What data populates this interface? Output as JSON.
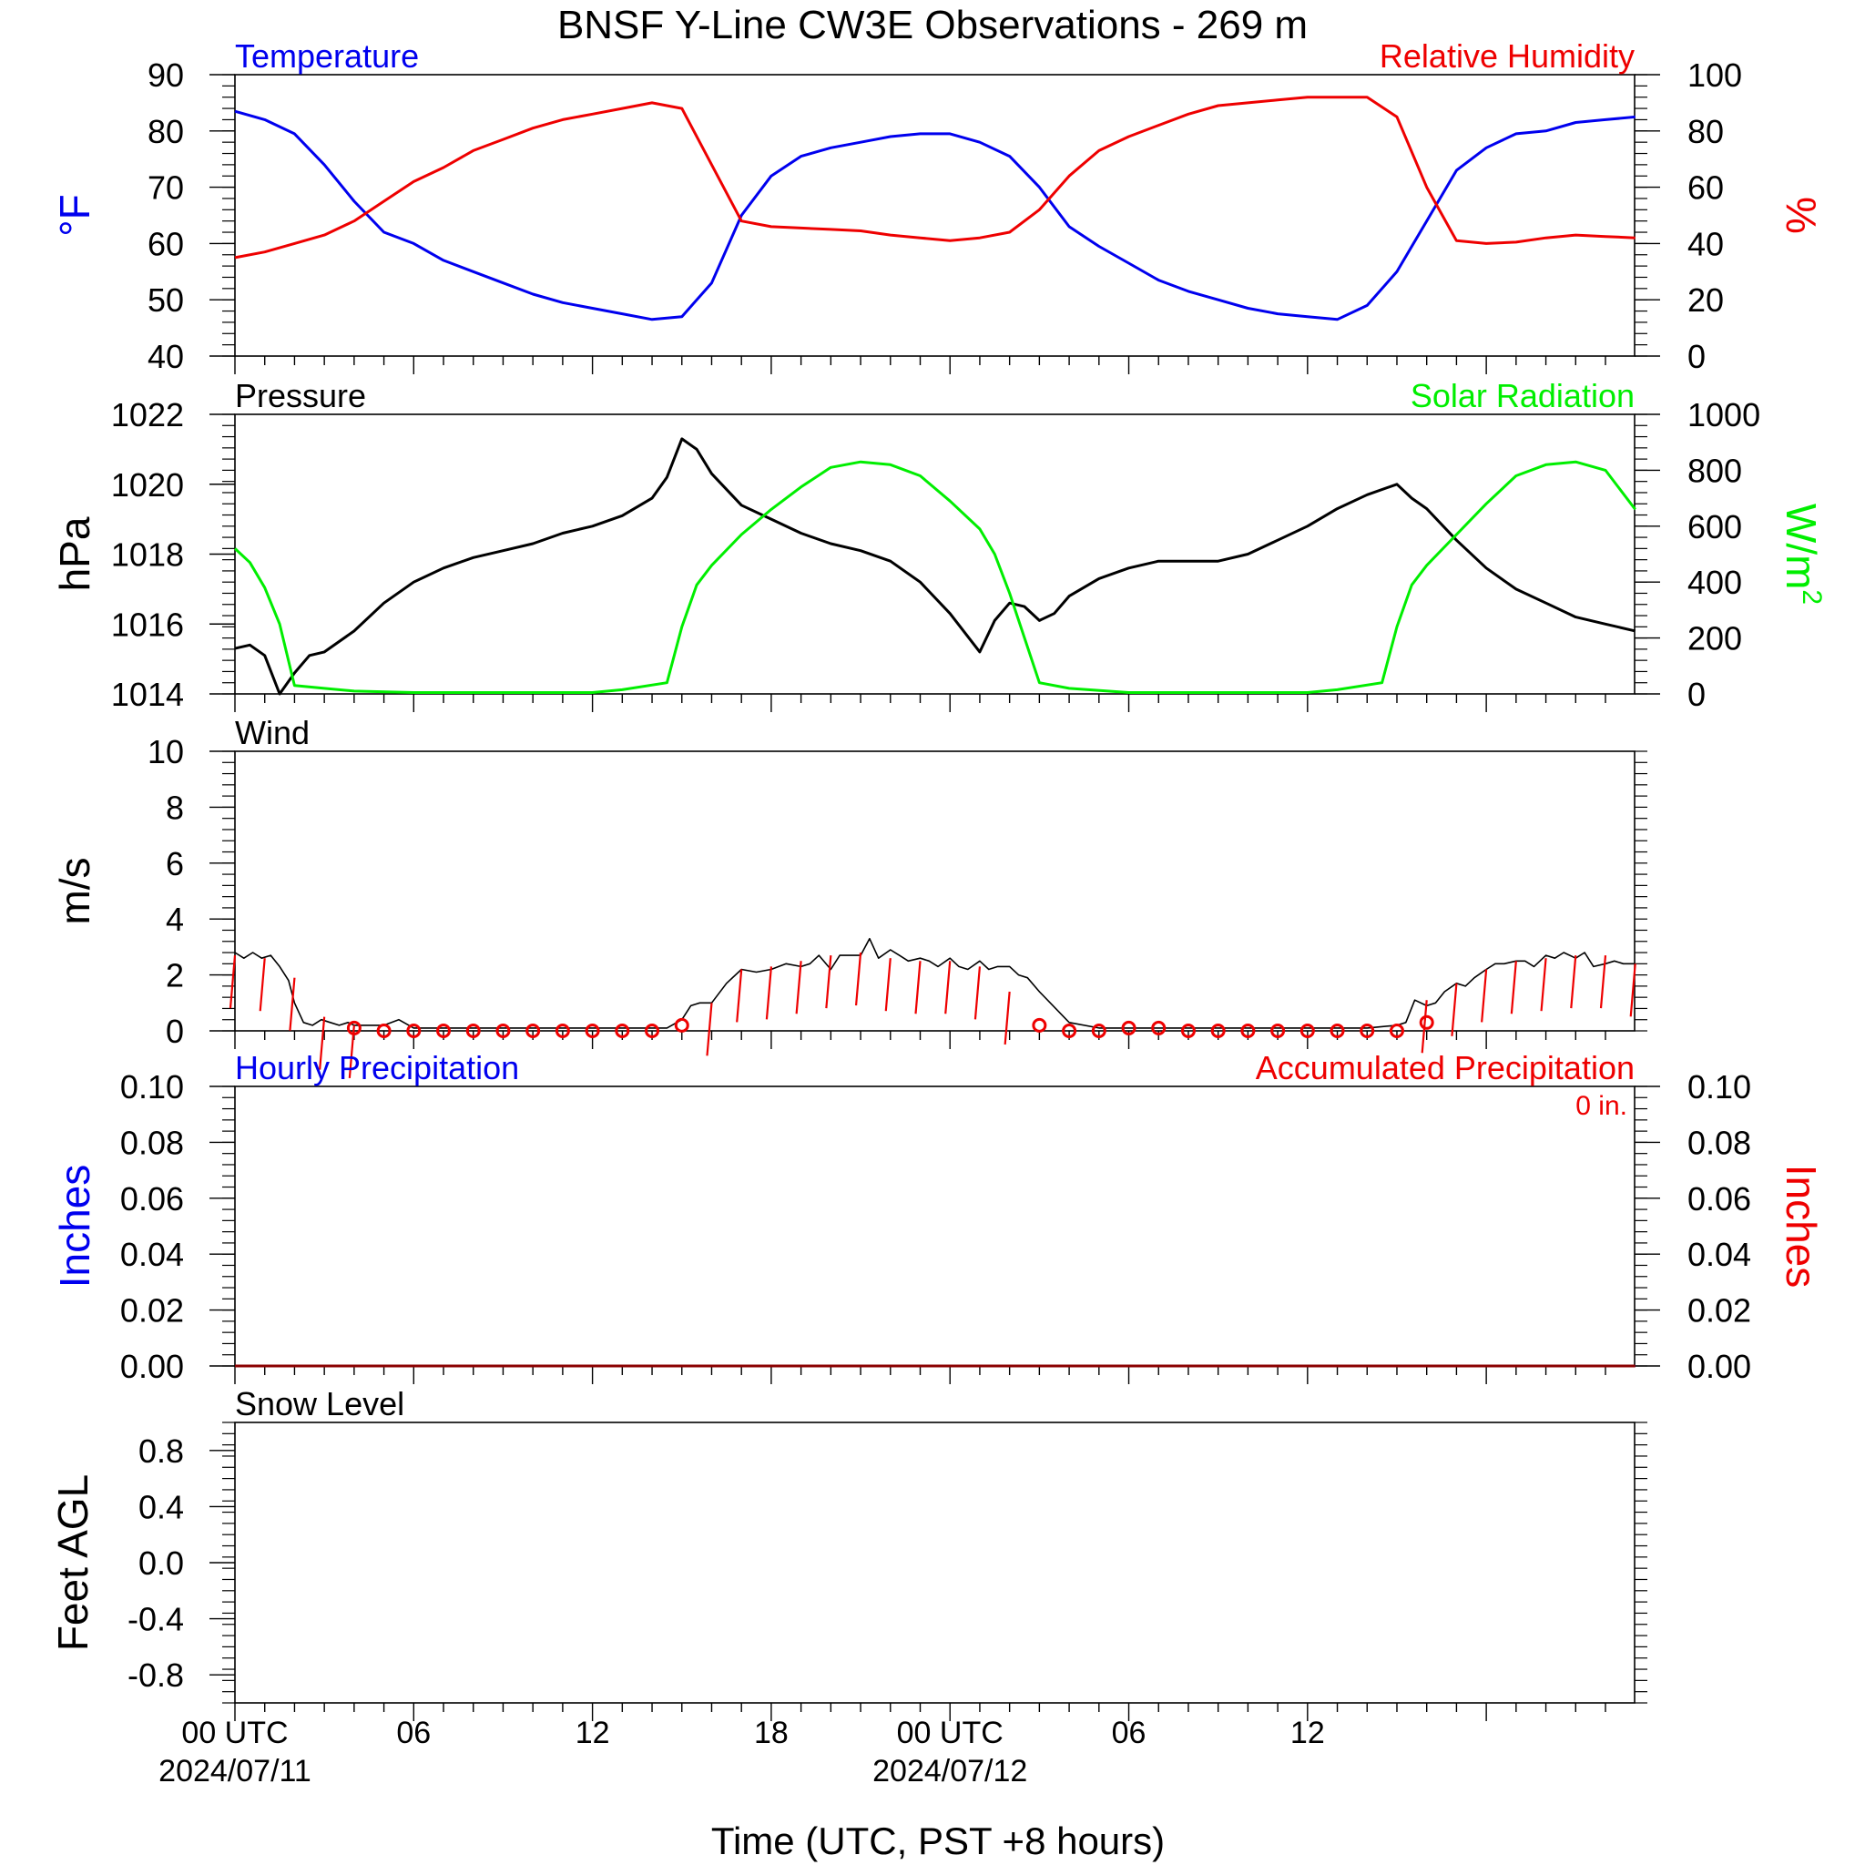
{
  "title": "BNSF Y-Line CW3E Observations - 269 m",
  "xlabel": "Time (UTC, PST +8 hours)",
  "x_tick_labels": [
    {
      "hour": 0,
      "line1": "00 UTC",
      "line2": "2024/07/11"
    },
    {
      "hour": 6,
      "line1": "06",
      "line2": ""
    },
    {
      "hour": 12,
      "line1": "12",
      "line2": ""
    },
    {
      "hour": 18,
      "line1": "18",
      "line2": ""
    },
    {
      "hour": 24,
      "line1": "00 UTC",
      "line2": "2024/07/12"
    },
    {
      "hour": 30,
      "line1": "06",
      "line2": ""
    },
    {
      "hour": 36,
      "line1": "12",
      "line2": ""
    }
  ],
  "colors": {
    "temperature": "#0000ee",
    "humidity": "#ee0000",
    "pressure": "#000000",
    "solar": "#00ee00",
    "wind": "#000000",
    "barb": "#ee0000",
    "precip_acc": "#8b0000"
  },
  "chart_data": [
    {
      "type": "line",
      "panel": "temperature-humidity",
      "series": [
        {
          "name": "Temperature",
          "axis": "left",
          "x": [
            0,
            1,
            2,
            3,
            4,
            5,
            6,
            7,
            8,
            9,
            10,
            11,
            12,
            13,
            14,
            15,
            16,
            17,
            18,
            19,
            20,
            21,
            22,
            23,
            24,
            25,
            26,
            27,
            28,
            29,
            30,
            31,
            32,
            33,
            34,
            35,
            36,
            37,
            38,
            39,
            40,
            41,
            42,
            43,
            44,
            45,
            46,
            47
          ],
          "y": [
            83.5,
            82,
            79.5,
            74,
            67.5,
            62,
            60,
            57,
            55,
            53,
            51,
            49.5,
            48.5,
            47.5,
            46.5,
            47,
            53,
            65,
            72,
            75.5,
            77,
            78,
            79,
            79.5,
            79.5,
            78,
            75.5,
            70,
            63,
            59.5,
            56.5,
            53.5,
            51.5,
            50,
            48.5,
            47.5,
            47,
            46.5,
            49,
            55,
            64,
            73,
            77,
            79.5,
            80,
            81.5,
            82,
            82.5
          ]
        },
        {
          "name": "Relative Humidity",
          "axis": "right",
          "x": [
            0,
            1,
            2,
            3,
            4,
            5,
            6,
            7,
            8,
            9,
            10,
            11,
            12,
            13,
            14,
            15,
            16,
            17,
            18,
            19,
            20,
            21,
            22,
            23,
            24,
            25,
            26,
            27,
            28,
            29,
            30,
            31,
            32,
            33,
            34,
            35,
            36,
            37,
            38,
            39,
            40,
            41,
            42,
            43,
            44,
            45,
            46,
            47
          ],
          "y": [
            35,
            37,
            40,
            43,
            48,
            55,
            62,
            67,
            73,
            77,
            81,
            84,
            86,
            88,
            90,
            88,
            68,
            48,
            46,
            45.5,
            45,
            44.5,
            43,
            42,
            41,
            42,
            44,
            52,
            64,
            73,
            78,
            82,
            86,
            89,
            90,
            91,
            92,
            92,
            92,
            85,
            60,
            41,
            40,
            40.5,
            42,
            43,
            42.5,
            42
          ]
        }
      ],
      "left_axis": {
        "label": "°F",
        "ylim": [
          40,
          90
        ],
        "ticks": [
          "40",
          "50",
          "60",
          "70",
          "80",
          "90"
        ]
      },
      "right_axis": {
        "label": "%",
        "ylim": [
          0,
          100
        ],
        "ticks": [
          "0",
          "20",
          "40",
          "60",
          "80",
          "100"
        ]
      }
    },
    {
      "type": "line",
      "panel": "pressure-solar",
      "series": [
        {
          "name": "Pressure",
          "axis": "left",
          "x": [
            0,
            0.5,
            1,
            1.5,
            2,
            2.5,
            3,
            4,
            5,
            6,
            7,
            8,
            9,
            10,
            11,
            12,
            13,
            14,
            14.5,
            15,
            15.5,
            16,
            17,
            18,
            19,
            20,
            21,
            22,
            23,
            24,
            25,
            25.5,
            26,
            26.5,
            27,
            27.5,
            28,
            29,
            30,
            31,
            32,
            33,
            34,
            35,
            36,
            37,
            38,
            39,
            39.5,
            40,
            41,
            42,
            43,
            44,
            45,
            46,
            47
          ],
          "y": [
            1015.3,
            1015.4,
            1015.1,
            1014,
            1014.6,
            1015.1,
            1015.2,
            1015.8,
            1016.6,
            1017.2,
            1017.6,
            1017.9,
            1018.1,
            1018.3,
            1018.6,
            1018.8,
            1019.1,
            1019.6,
            1020.2,
            1021.3,
            1021,
            1020.3,
            1019.4,
            1019,
            1018.6,
            1018.3,
            1018.1,
            1017.8,
            1017.2,
            1016.3,
            1015.2,
            1016.1,
            1016.6,
            1016.5,
            1016.1,
            1016.3,
            1016.8,
            1017.3,
            1017.6,
            1017.8,
            1017.8,
            1017.8,
            1018,
            1018.4,
            1018.8,
            1019.3,
            1019.7,
            1020,
            1019.6,
            1019.3,
            1018.4,
            1017.6,
            1017,
            1016.6,
            1016.2,
            1016,
            1015.8
          ]
        },
        {
          "name": "Solar Radiation",
          "axis": "right",
          "x": [
            0,
            0.5,
            1,
            1.5,
            2,
            3,
            4,
            6,
            8,
            10,
            12,
            13,
            14.5,
            15,
            15.5,
            16,
            17,
            18,
            19,
            20,
            21,
            22,
            23,
            24,
            25,
            25.5,
            26,
            27,
            28,
            30,
            32,
            34,
            36,
            37,
            38.5,
            39,
            39.5,
            40,
            41,
            42,
            43,
            44,
            45,
            46,
            47
          ],
          "y": [
            520,
            470,
            380,
            250,
            30,
            20,
            10,
            5,
            5,
            5,
            5,
            15,
            40,
            240,
            390,
            460,
            570,
            660,
            740,
            810,
            830,
            820,
            780,
            690,
            590,
            500,
            360,
            40,
            20,
            5,
            5,
            5,
            5,
            15,
            40,
            240,
            390,
            460,
            570,
            680,
            780,
            820,
            830,
            800,
            660
          ]
        }
      ],
      "left_axis": {
        "label": "hPa",
        "ylim": [
          1014,
          1022
        ],
        "ticks": [
          "1014",
          "1016",
          "1018",
          "1020",
          "1022"
        ]
      },
      "right_axis": {
        "label": "W/m",
        "label_sup": "2",
        "ylim": [
          0,
          1000
        ],
        "ticks": [
          "0",
          "200",
          "400",
          "600",
          "800",
          "1000"
        ]
      }
    },
    {
      "type": "line",
      "panel": "wind",
      "series": [
        {
          "name": "Wind",
          "axis": "left",
          "x": [
            0,
            0.3,
            0.6,
            0.9,
            1.2,
            1.5,
            1.8,
            2,
            2.3,
            2.6,
            2.9,
            3.2,
            3.5,
            3.8,
            4,
            4.5,
            5,
            5.5,
            6,
            6.5,
            7,
            8,
            9,
            10,
            11,
            12,
            13,
            14,
            14.5,
            15,
            15.3,
            15.6,
            16,
            16.5,
            17,
            17.5,
            18,
            18.5,
            19,
            19.3,
            19.6,
            20,
            20.3,
            20.6,
            21,
            21.3,
            21.6,
            22,
            22.3,
            22.6,
            23,
            23.3,
            23.6,
            24,
            24.3,
            24.6,
            25,
            25.3,
            25.6,
            26,
            26.3,
            26.6,
            27,
            28,
            29,
            30,
            31,
            32,
            33,
            34,
            35,
            36,
            37,
            38,
            39,
            39.3,
            39.6,
            40,
            40.3,
            40.6,
            41,
            41.3,
            41.6,
            42,
            42.3,
            42.6,
            43,
            43.3,
            43.6,
            44,
            44.3,
            44.6,
            45,
            45.3,
            45.6,
            46,
            46.3,
            46.6,
            47
          ],
          "y": [
            2.8,
            2.6,
            2.8,
            2.6,
            2.7,
            2.3,
            1.8,
            1.0,
            0.3,
            0.2,
            0.4,
            0.3,
            0.2,
            0.3,
            0.2,
            0.2,
            0.2,
            0.4,
            0.1,
            0.1,
            0.1,
            0.1,
            0.1,
            0.1,
            0.1,
            0.1,
            0.1,
            0.1,
            0.1,
            0.4,
            0.9,
            1.0,
            1.0,
            1.7,
            2.2,
            2.1,
            2.2,
            2.4,
            2.3,
            2.4,
            2.7,
            2.2,
            2.7,
            2.7,
            2.7,
            3.3,
            2.6,
            2.9,
            2.7,
            2.5,
            2.6,
            2.5,
            2.3,
            2.6,
            2.3,
            2.2,
            2.5,
            2.2,
            2.3,
            2.3,
            2.0,
            1.9,
            1.4,
            0.3,
            0.1,
            0.1,
            0.1,
            0.1,
            0.1,
            0.1,
            0.1,
            0.1,
            0.1,
            0.1,
            0.2,
            0.3,
            1.1,
            0.9,
            1.0,
            1.4,
            1.7,
            1.6,
            1.9,
            2.2,
            2.4,
            2.4,
            2.5,
            2.5,
            2.3,
            2.7,
            2.6,
            2.8,
            2.6,
            2.8,
            2.3,
            2.4,
            2.5,
            2.4,
            2.4
          ]
        },
        {
          "name": "calm",
          "axis": "left",
          "x": [
            4,
            5,
            6,
            7,
            8,
            9,
            10,
            11,
            12,
            13,
            14,
            15,
            27,
            28,
            29,
            30,
            31,
            32,
            33,
            34,
            35,
            36,
            37,
            38,
            39,
            40
          ],
          "y": [
            0.1,
            0,
            0,
            0,
            0,
            0,
            0,
            0,
            0,
            0,
            0,
            0.2,
            0.2,
            0,
            0,
            0.1,
            0.1,
            0,
            0,
            0,
            0,
            0,
            0,
            0,
            0,
            0.3
          ]
        },
        {
          "name": "barbs",
          "axis": "left",
          "x": [
            0,
            1,
            2,
            3,
            4,
            16,
            17,
            18,
            19,
            20,
            21,
            22,
            23,
            24,
            25,
            26,
            40,
            41,
            42,
            43,
            44,
            45,
            46,
            47
          ],
          "y": [
            2.7,
            2.6,
            1.9,
            0.5,
            0.2,
            1.0,
            2.2,
            2.3,
            2.5,
            2.7,
            2.8,
            2.6,
            2.5,
            2.5,
            2.3,
            1.4,
            1.1,
            1.7,
            2.2,
            2.5,
            2.6,
            2.7,
            2.7,
            2.4
          ]
        }
      ],
      "left_axis": {
        "label": "m/s",
        "ylim": [
          0,
          10
        ],
        "ticks": [
          "0",
          "2",
          "4",
          "6",
          "8",
          "10"
        ]
      }
    },
    {
      "type": "line",
      "panel": "precipitation",
      "series": [
        {
          "name": "Hourly Precipitation",
          "axis": "left",
          "x": [
            0,
            47
          ],
          "y": [
            0,
            0
          ]
        },
        {
          "name": "Accumulated Precipitation",
          "axis": "right",
          "x": [
            0,
            47
          ],
          "y": [
            0,
            0
          ]
        }
      ],
      "left_axis": {
        "label": "Inches",
        "ylim": [
          0,
          0.1
        ],
        "ticks": [
          "0.00",
          "0.02",
          "0.04",
          "0.06",
          "0.08",
          "0.10"
        ]
      },
      "right_axis": {
        "label": "Inches",
        "ylim": [
          0,
          0.1
        ],
        "ticks": [
          "0.00",
          "0.02",
          "0.04",
          "0.06",
          "0.08",
          "0.10"
        ]
      },
      "annotation": "0 in."
    },
    {
      "type": "line",
      "panel": "snow-level",
      "series": [
        {
          "name": "Snow Level",
          "axis": "left",
          "x": [],
          "y": []
        }
      ],
      "left_axis": {
        "label": "Feet AGL",
        "ylim": [
          -1,
          1
        ],
        "ticks": [
          "-0.8",
          "-0.4",
          "0.0",
          "0.4",
          "0.8"
        ],
        "tick_values": [
          -0.8,
          -0.4,
          0,
          0.4,
          0.8
        ]
      }
    }
  ],
  "xlim": [
    0,
    48
  ]
}
